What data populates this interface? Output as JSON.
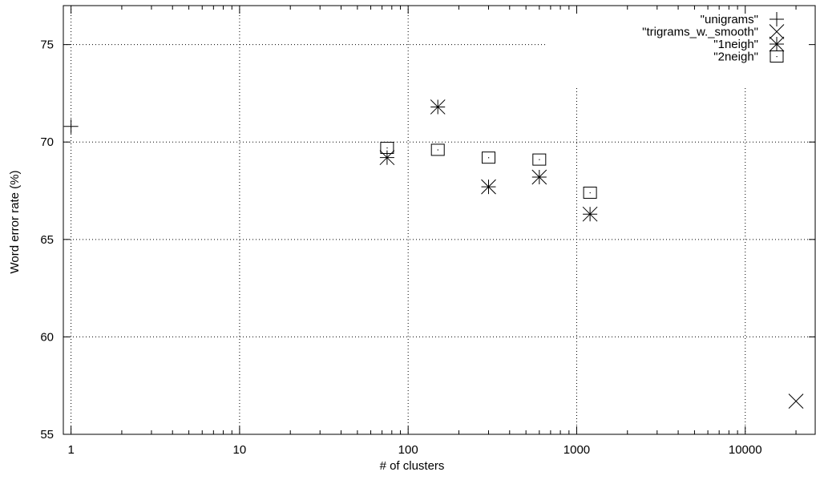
{
  "chart_data": {
    "type": "scatter",
    "title": "",
    "xlabel": "# of clusters",
    "ylabel": "Word error rate (%)",
    "x_scale": "log",
    "xlim": [
      0.9,
      26000
    ],
    "ylim": [
      55,
      77
    ],
    "grid": true,
    "legend_position": "top-right",
    "x_ticks": [
      1,
      10,
      100,
      1000,
      10000
    ],
    "x_tick_labels": [
      "1",
      "10",
      "100",
      "1000",
      "10000"
    ],
    "y_ticks": [
      55,
      60,
      65,
      70,
      75
    ],
    "y_tick_labels": [
      "55",
      "60",
      "65",
      "70",
      "75"
    ],
    "series": [
      {
        "name": "\"unigrams\"",
        "marker": "plus",
        "color": "#000000",
        "points": [
          [
            1,
            70.8
          ]
        ]
      },
      {
        "name": "\"trigrams_w._smooth\"",
        "marker": "cross",
        "color": "#000000",
        "points": [
          [
            20000,
            56.7
          ]
        ]
      },
      {
        "name": "\"1neigh\"",
        "marker": "star",
        "color": "#000000",
        "points": [
          [
            75,
            69.2
          ],
          [
            150,
            71.8
          ],
          [
            300,
            67.7
          ],
          [
            600,
            68.2
          ],
          [
            1200,
            66.3
          ]
        ]
      },
      {
        "name": "\"2neigh\"",
        "marker": "box-dot",
        "color": "#000000",
        "points": [
          [
            75,
            69.7
          ],
          [
            150,
            69.6
          ],
          [
            300,
            69.2
          ],
          [
            600,
            69.1
          ],
          [
            1200,
            67.4
          ]
        ]
      }
    ]
  }
}
